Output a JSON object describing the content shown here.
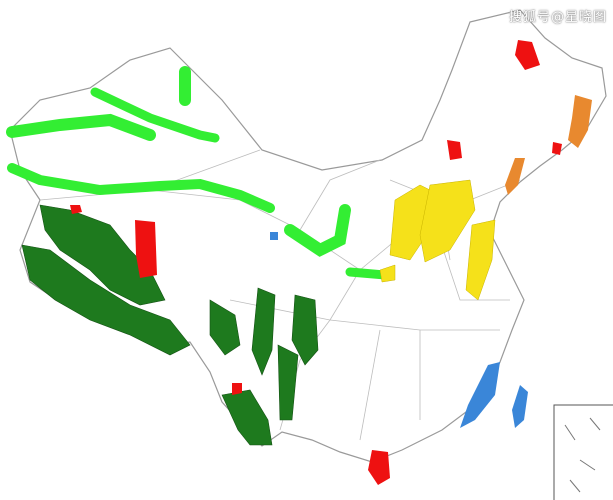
{
  "watermark": "搜狐号@星晓图",
  "colors": {
    "background": "#ffffff",
    "border": "#9a9a9a",
    "light_green": "#33ee33",
    "dark_green": "#1e7a1e",
    "red": "#ee1111",
    "yellow": "#f5e11a",
    "orange": "#e8892f",
    "blue": "#3a86d8"
  }
}
